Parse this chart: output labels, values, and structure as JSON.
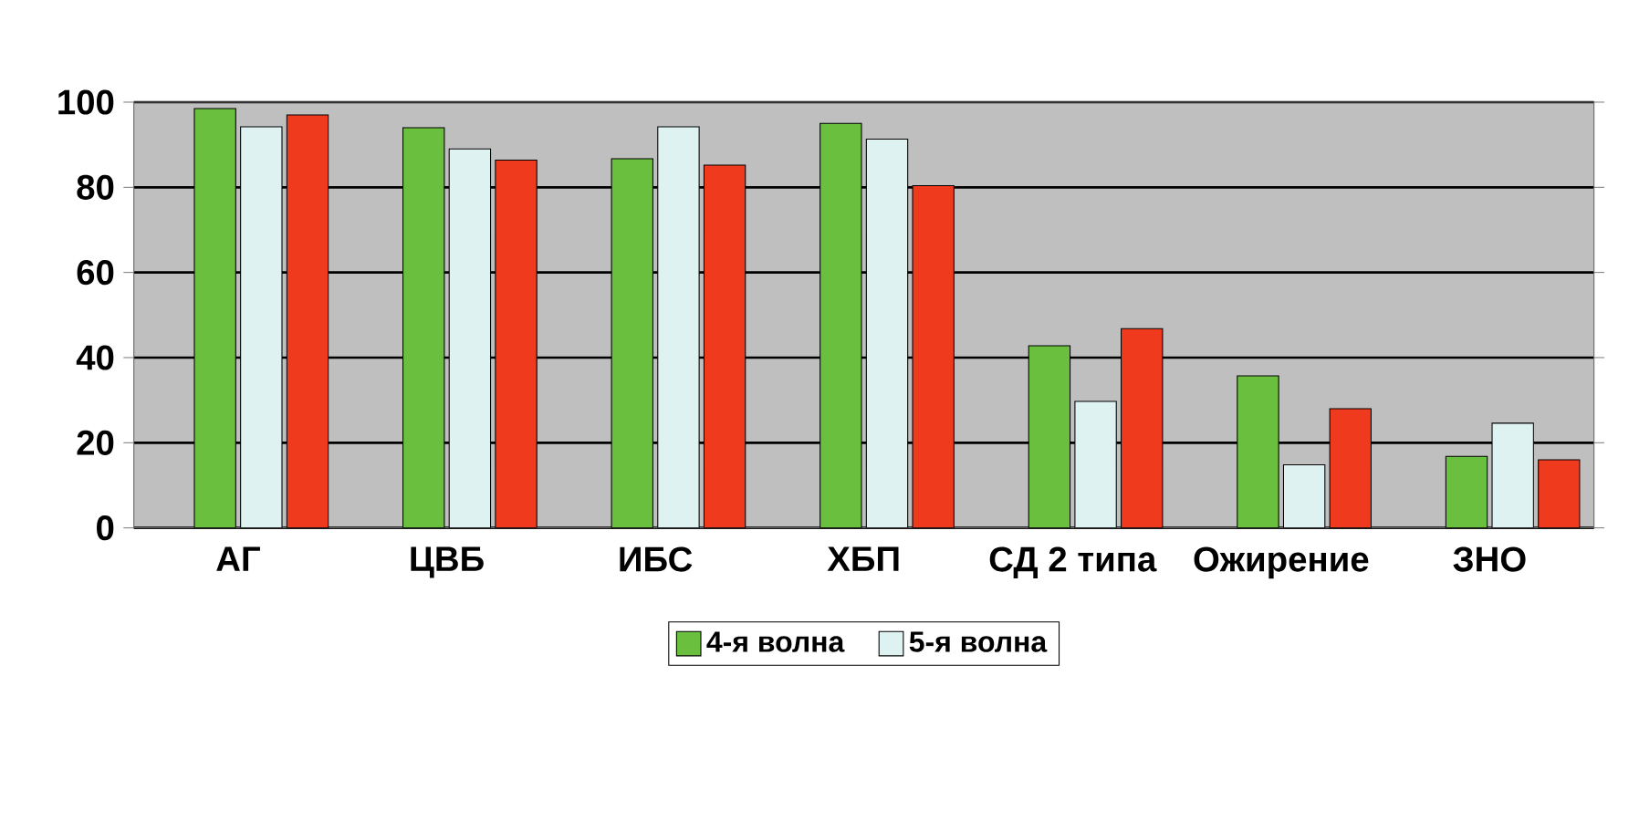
{
  "chart_data": {
    "type": "bar",
    "categories": [
      "АГ",
      "ЦВБ",
      "ИБС",
      "ХБП",
      "СД 2 типа",
      "Ожирение",
      "ЗНО"
    ],
    "series": [
      {
        "name": "4-я волна",
        "color": "#6abf3f",
        "values": [
          98.5,
          94,
          86.7,
          95,
          42.8,
          35.7,
          16.8
        ]
      },
      {
        "name": "5-я волна",
        "color": "#dff2f2",
        "values": [
          94.2,
          89,
          94.2,
          91.3,
          29.7,
          14.8,
          24.6
        ]
      },
      {
        "color": "#f03a1e",
        "values": [
          97,
          86.4,
          85.2,
          80.4,
          46.8,
          28,
          16
        ]
      }
    ],
    "ylim": [
      0,
      100
    ],
    "yticks": [
      0,
      20,
      40,
      60,
      80,
      100
    ],
    "grid": "y",
    "legend": "bottom"
  }
}
